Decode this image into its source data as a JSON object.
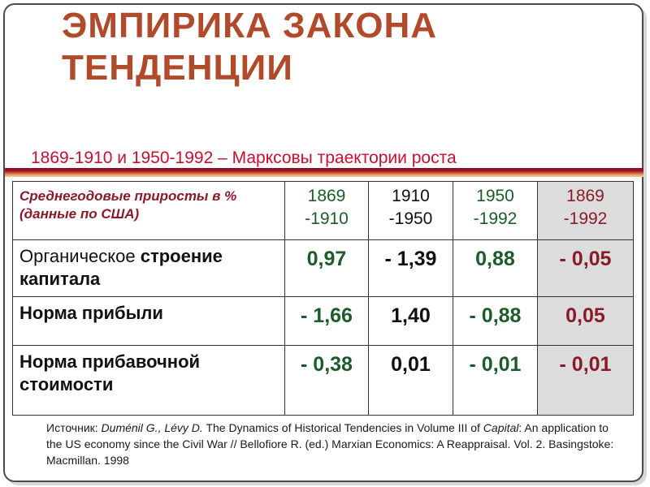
{
  "title": {
    "line1": "ЭМПИРИКА ЗАКОНА",
    "line2": "ТЕНДЕНЦИИ"
  },
  "subtitle": "1869-1910  и 1950-1992 – Марксовы траектории роста",
  "table": {
    "header_label": "Среднегодовые приросты в % (данные по США)",
    "periods": [
      {
        "line1": "1869",
        "line2": "-1910"
      },
      {
        "line1": "1910",
        "line2": "-1950"
      },
      {
        "line1": "1950",
        "line2": "-1992"
      },
      {
        "line1": "1869",
        "line2": "-1992"
      }
    ],
    "rows": [
      {
        "label_part1": "Органическое ",
        "label_part2": "строение капитала",
        "values": [
          "0,97",
          "- 1,39",
          "0,88",
          "- 0,05"
        ]
      },
      {
        "label_part1": "",
        "label_part2": "Норма прибыли",
        "values": [
          "- 1,66",
          "1,40",
          "- 0,88",
          "0,05"
        ]
      },
      {
        "label_part1": "",
        "label_part2": "Норма прибавочной стоимости",
        "values": [
          "- 0,38",
          "0,01",
          "- 0,01",
          "- 0,01"
        ]
      }
    ]
  },
  "source": {
    "prefix": "Источник: ",
    "authors": "Duménil G., Lévy D.",
    "title_start": " The Dynamics of Historical Tendencies in Volume III of ",
    "capital": "Capital",
    "title_end": ": An application to the US economy since the Civil War // Bellofiore R. (ed.) Marxian Economics: A Reappraisal. Vol. 2. Basingstoke: Macmillan. 1998"
  },
  "colors": {
    "title": "#b04a2a",
    "subtitle": "#c8102e",
    "green_values": "#1c5c2a",
    "maroon_values": "#8a1a2a",
    "shaded_column": "#dcdcdc"
  }
}
